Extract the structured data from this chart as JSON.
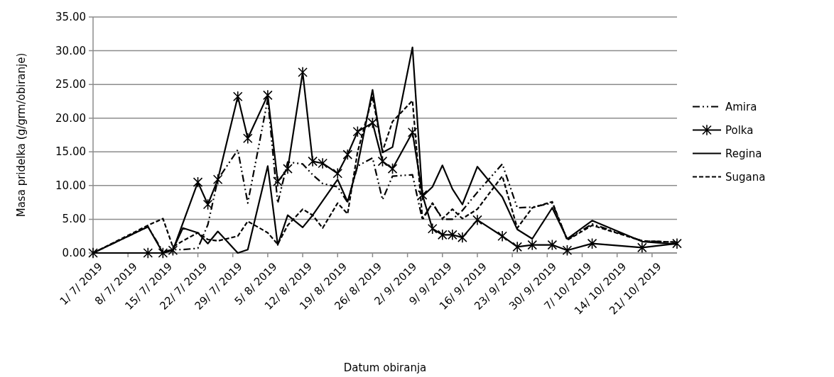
{
  "chart_data": {
    "type": "line",
    "xlabel": "Datum obiranja",
    "ylabel": "Masa pridelka (g/grm/obiranje)",
    "xlim": [
      "2019-07-01",
      "2019-10-26"
    ],
    "xticks": [
      {
        "value": "2019-07-01",
        "label": "1/ 7/ 2019"
      },
      {
        "value": "2019-07-08",
        "label": "8/ 7/ 2019"
      },
      {
        "value": "2019-07-15",
        "label": "15/ 7/ 2019"
      },
      {
        "value": "2019-07-22",
        "label": "22/ 7/ 2019"
      },
      {
        "value": "2019-07-29",
        "label": "29/ 7/ 2019"
      },
      {
        "value": "2019-08-05",
        "label": "5/ 8/ 2019"
      },
      {
        "value": "2019-08-12",
        "label": "12/ 8/ 2019"
      },
      {
        "value": "2019-08-19",
        "label": "19/ 8/ 2019"
      },
      {
        "value": "2019-08-26",
        "label": "26/ 8/ 2019"
      },
      {
        "value": "2019-09-02",
        "label": "2/ 9/ 2019"
      },
      {
        "value": "2019-09-09",
        "label": "9/ 9/ 2019"
      },
      {
        "value": "2019-09-16",
        "label": "16/ 9/ 2019"
      },
      {
        "value": "2019-09-23",
        "label": "23/ 9/ 2019"
      },
      {
        "value": "2019-09-30",
        "label": "30/ 9/ 2019"
      },
      {
        "value": "2019-10-07",
        "label": "7/ 10/ 2019"
      },
      {
        "value": "2019-10-14",
        "label": "14/ 10/ 2019"
      },
      {
        "value": "2019-10-21",
        "label": "21/ 10/ 2019"
      }
    ],
    "ylim": [
      0,
      35
    ],
    "yticks": [
      {
        "value": 0,
        "label": "0.00"
      },
      {
        "value": 5,
        "label": "5.00"
      },
      {
        "value": 10,
        "label": "10.00"
      },
      {
        "value": 15,
        "label": "15.00"
      },
      {
        "value": 20,
        "label": "20.00"
      },
      {
        "value": 25,
        "label": "25.00"
      },
      {
        "value": 30,
        "label": "30.00"
      },
      {
        "value": 35,
        "label": "35.00"
      }
    ],
    "grid": "y",
    "legend": "right",
    "series": [
      {
        "name": "Amira",
        "color": "#000000",
        "line_style": "dashdot",
        "marker": "none",
        "x": [
          "2019-07-01",
          "2019-07-12",
          "2019-07-15",
          "2019-07-17",
          "2019-07-19",
          "2019-07-22",
          "2019-07-24",
          "2019-07-26",
          "2019-07-30",
          "2019-08-01",
          "2019-08-05",
          "2019-08-07",
          "2019-08-09",
          "2019-08-12",
          "2019-08-14",
          "2019-08-16",
          "2019-08-19",
          "2019-08-21",
          "2019-08-23",
          "2019-08-26",
          "2019-08-28",
          "2019-08-30",
          "2019-09-03",
          "2019-09-05",
          "2019-09-07",
          "2019-09-09",
          "2019-09-11",
          "2019-09-13",
          "2019-09-16",
          "2019-09-21",
          "2019-09-24",
          "2019-09-27",
          "2019-10-01",
          "2019-10-04",
          "2019-10-09",
          "2019-10-19",
          "2019-10-26"
        ],
        "values": [
          0,
          3.9,
          0.2,
          0.5,
          0.5,
          0.7,
          4.2,
          10.9,
          15.3,
          7.4,
          22.8,
          7.4,
          13.5,
          13.2,
          11.6,
          10.3,
          9.8,
          7.5,
          12.9,
          14.1,
          7.9,
          11.4,
          11.6,
          4.9,
          7.4,
          5.0,
          5.0,
          6.3,
          9.0,
          13.2,
          6.7,
          6.8,
          7.4,
          2.0,
          4.3,
          1.8,
          1.6
        ]
      },
      {
        "name": "Polka",
        "color": "#000000",
        "line_style": "solid",
        "marker": "cross",
        "x": [
          "2019-07-01",
          "2019-07-12",
          "2019-07-15",
          "2019-07-17",
          "2019-07-22",
          "2019-07-24",
          "2019-07-26",
          "2019-07-30",
          "2019-08-01",
          "2019-08-05",
          "2019-08-07",
          "2019-08-09",
          "2019-08-12",
          "2019-08-14",
          "2019-08-16",
          "2019-08-19",
          "2019-08-21",
          "2019-08-23",
          "2019-08-26",
          "2019-08-28",
          "2019-08-30",
          "2019-09-03",
          "2019-09-05",
          "2019-09-07",
          "2019-09-09",
          "2019-09-11",
          "2019-09-13",
          "2019-09-16",
          "2019-09-21",
          "2019-09-24",
          "2019-09-27",
          "2019-10-01",
          "2019-10-04",
          "2019-10-09",
          "2019-10-19",
          "2019-10-26"
        ],
        "values": [
          0,
          0,
          0,
          0.4,
          10.5,
          7.2,
          10.9,
          23.2,
          17.0,
          23.4,
          10.6,
          12.5,
          26.8,
          13.6,
          13.3,
          11.8,
          14.6,
          18.0,
          19.3,
          13.6,
          12.5,
          17.9,
          8.6,
          3.6,
          2.7,
          2.7,
          2.3,
          4.9,
          2.5,
          0.9,
          1.2,
          1.2,
          0.4,
          1.4,
          0.8,
          1.4
        ]
      },
      {
        "name": "Regina",
        "color": "#000000",
        "line_style": "solid",
        "marker": "none",
        "x": [
          "2019-07-01",
          "2019-07-12",
          "2019-07-15",
          "2019-07-17",
          "2019-07-19",
          "2019-07-22",
          "2019-07-24",
          "2019-07-26",
          "2019-07-30",
          "2019-08-01",
          "2019-08-05",
          "2019-08-07",
          "2019-08-09",
          "2019-08-12",
          "2019-08-14",
          "2019-08-19",
          "2019-08-21",
          "2019-08-23",
          "2019-08-26",
          "2019-08-28",
          "2019-08-30",
          "2019-09-03",
          "2019-09-05",
          "2019-09-07",
          "2019-09-09",
          "2019-09-11",
          "2019-09-13",
          "2019-09-16",
          "2019-09-21",
          "2019-09-24",
          "2019-09-27",
          "2019-10-01",
          "2019-10-04",
          "2019-10-09",
          "2019-10-19",
          "2019-10-26"
        ],
        "values": [
          0,
          3.9,
          0,
          0.5,
          3.7,
          3.0,
          1.4,
          3.2,
          0,
          0.5,
          12.9,
          1.2,
          5.6,
          3.8,
          5.6,
          10.9,
          7.6,
          13.0,
          24.2,
          14.9,
          15.7,
          30.5,
          8.4,
          9.8,
          13.0,
          9.5,
          7.2,
          12.8,
          8.3,
          3.5,
          2.1,
          6.7,
          2.1,
          4.8,
          1.7,
          1.3
        ]
      },
      {
        "name": "Sugana",
        "color": "#000000",
        "line_style": "dashed",
        "marker": "none",
        "x": [
          "2019-07-01",
          "2019-07-12",
          "2019-07-15",
          "2019-07-17",
          "2019-07-19",
          "2019-07-22",
          "2019-07-24",
          "2019-07-26",
          "2019-07-30",
          "2019-08-01",
          "2019-08-05",
          "2019-08-07",
          "2019-08-09",
          "2019-08-12",
          "2019-08-14",
          "2019-08-16",
          "2019-08-19",
          "2019-08-21",
          "2019-08-23",
          "2019-08-26",
          "2019-08-28",
          "2019-08-30",
          "2019-09-03",
          "2019-09-05",
          "2019-09-07",
          "2019-09-09",
          "2019-09-11",
          "2019-09-13",
          "2019-09-16",
          "2019-09-21",
          "2019-09-24",
          "2019-09-27",
          "2019-10-01",
          "2019-10-04",
          "2019-10-09",
          "2019-10-19",
          "2019-10-26"
        ],
        "values": [
          0,
          4.1,
          5.1,
          0.9,
          1.8,
          3.0,
          2.0,
          1.8,
          2.5,
          4.7,
          3.0,
          1.3,
          4.1,
          6.5,
          5.6,
          3.7,
          7.4,
          5.8,
          15.0,
          23.2,
          15.1,
          19.5,
          22.6,
          5.1,
          7.4,
          5.1,
          6.5,
          5.1,
          6.5,
          11.4,
          3.7,
          6.7,
          7.6,
          1.9,
          4.1,
          1.8,
          1.6
        ]
      }
    ]
  }
}
